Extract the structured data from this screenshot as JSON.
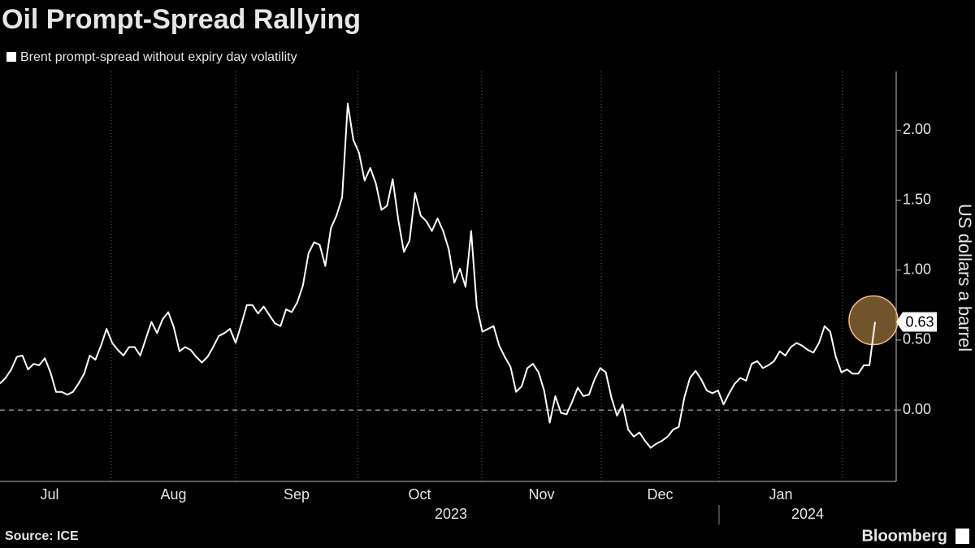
{
  "chart_data": {
    "type": "line",
    "title": "Oil Prompt-Spread Rallying",
    "y_axis_label": "US dollars a barrel",
    "source": "Source: ICE",
    "brand": "Bloomberg",
    "months": [
      "Jul",
      "Aug",
      "Sep",
      "Oct",
      "Nov",
      "Dec",
      "Jan"
    ],
    "years": [
      "2023",
      "2024"
    ],
    "ylim": [
      -0.51,
      2.42
    ],
    "yticks": [
      {
        "value": 0,
        "label": "0.00"
      },
      {
        "value": 0.5,
        "label": "0.50"
      },
      {
        "value": 1,
        "label": "1.00"
      },
      {
        "value": 1.5,
        "label": "1.50"
      },
      {
        "value": 2,
        "label": "2.00"
      }
    ],
    "series": [
      {
        "name": "Brent prompt-spread without expiry day volatility",
        "color": "#ffffff",
        "values": [
          0.19,
          0.23,
          0.29,
          0.38,
          0.39,
          0.29,
          0.33,
          0.32,
          0.37,
          0.27,
          0.13,
          0.13,
          0.11,
          0.13,
          0.19,
          0.26,
          0.39,
          0.36,
          0.46,
          0.58,
          0.48,
          0.43,
          0.39,
          0.45,
          0.45,
          0.39,
          0.51,
          0.63,
          0.55,
          0.65,
          0.7,
          0.59,
          0.42,
          0.45,
          0.43,
          0.38,
          0.34,
          0.38,
          0.45,
          0.53,
          0.55,
          0.58,
          0.48,
          0.61,
          0.75,
          0.75,
          0.69,
          0.74,
          0.68,
          0.62,
          0.6,
          0.72,
          0.7,
          0.77,
          0.89,
          1.12,
          1.2,
          1.18,
          1.03,
          1.3,
          1.39,
          1.52,
          2.19,
          1.93,
          1.84,
          1.64,
          1.73,
          1.62,
          1.43,
          1.46,
          1.65,
          1.36,
          1.13,
          1.21,
          1.55,
          1.39,
          1.35,
          1.28,
          1.37,
          1.28,
          1.15,
          0.91,
          1.01,
          0.88,
          1.28,
          0.74,
          0.56,
          0.58,
          0.6,
          0.46,
          0.38,
          0.31,
          0.13,
          0.17,
          0.3,
          0.33,
          0.27,
          0.14,
          -0.09,
          0.1,
          -0.02,
          -0.03,
          0.06,
          0.16,
          0.1,
          0.11,
          0.22,
          0.3,
          0.27,
          0.09,
          -0.04,
          0.04,
          -0.14,
          -0.19,
          -0.16,
          -0.22,
          -0.27,
          -0.24,
          -0.22,
          -0.19,
          -0.14,
          -0.12,
          0.09,
          0.23,
          0.28,
          0.22,
          0.14,
          0.12,
          0.14,
          0.04,
          0.12,
          0.19,
          0.23,
          0.21,
          0.33,
          0.35,
          0.3,
          0.32,
          0.35,
          0.42,
          0.39,
          0.45,
          0.48,
          0.46,
          0.43,
          0.41,
          0.48,
          0.6,
          0.56,
          0.38,
          0.27,
          0.29,
          0.26,
          0.26,
          0.32,
          0.32,
          0.63
        ]
      }
    ]
  }
}
